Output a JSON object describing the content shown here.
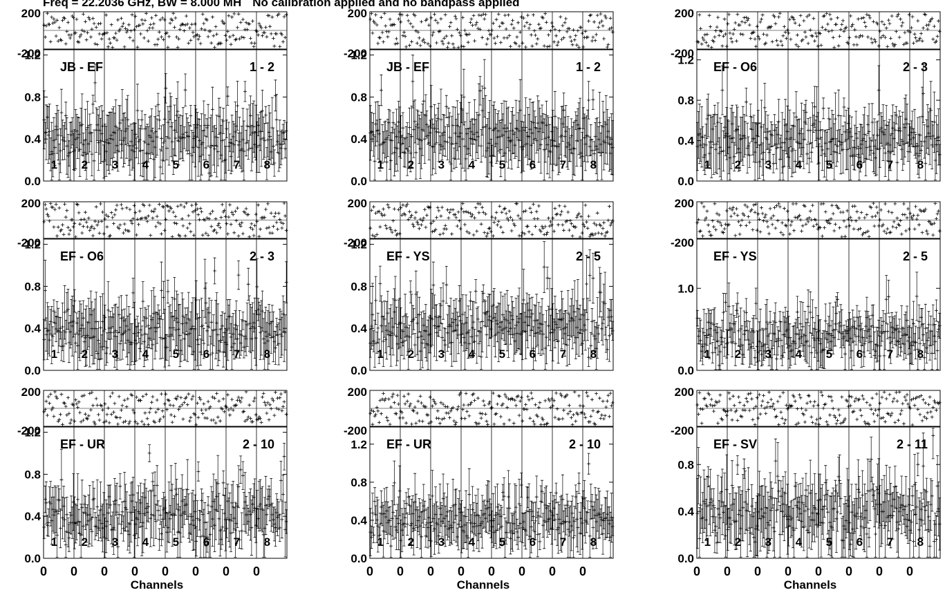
{
  "header": {
    "freq_text": "Freq = 22.2036 GHz, BW = 8.000 MH",
    "cal_text": "No calibration applied and no bandpass applied"
  },
  "x_axis": {
    "label": "Channels",
    "tick_labels": [
      "0",
      "0",
      "0",
      "0",
      "0",
      "0",
      "0",
      "0"
    ]
  },
  "subband_labels": [
    "1",
    "2",
    "3",
    "4",
    "5",
    "6",
    "7",
    "8"
  ],
  "chart_data": [
    {
      "type": "scatter",
      "row": 0,
      "col": 0,
      "baseline": "JB - EF",
      "antennas": "1 - 2",
      "phase": {
        "ylim": [
          -200,
          200
        ],
        "tick_labels": [
          "200",
          "-200"
        ]
      },
      "amp": {
        "ylim": [
          0,
          1.25
        ],
        "ticks": [
          0.0,
          0.4,
          0.8,
          1.2
        ],
        "tick_labels": [
          "0.0",
          "0.4",
          "0.8",
          "1.2"
        ],
        "mean": 0.4,
        "spread": 0.2
      }
    },
    {
      "type": "scatter",
      "row": 0,
      "col": 1,
      "baseline": "JB - EF",
      "antennas": "1 - 2",
      "phase": {
        "ylim": [
          -200,
          200
        ],
        "tick_labels": [
          "200",
          "-200"
        ]
      },
      "amp": {
        "ylim": [
          0,
          1.25
        ],
        "ticks": [
          0.0,
          0.4,
          0.8,
          1.2
        ],
        "tick_labels": [
          "0.0",
          "0.4",
          "0.8",
          "1.2"
        ],
        "mean": 0.4,
        "spread": 0.2
      }
    },
    {
      "type": "scatter",
      "row": 0,
      "col": 2,
      "baseline": "EF - O6",
      "antennas": "2 - 3",
      "phase": {
        "ylim": [
          -200,
          200
        ],
        "tick_labels": [
          "200",
          "-200"
        ]
      },
      "amp": {
        "ylim": [
          0,
          1.3
        ],
        "ticks": [
          0.0,
          0.4,
          0.8,
          1.2
        ],
        "tick_labels": [
          "0.0",
          "0.4",
          "0.8",
          "1.2"
        ],
        "mean": 0.4,
        "spread": 0.2
      }
    },
    {
      "type": "scatter",
      "row": 1,
      "col": 0,
      "baseline": "EF - O6",
      "antennas": "2 - 3",
      "phase": {
        "ylim": [
          -200,
          200
        ],
        "tick_labels": [
          "200",
          "-200"
        ]
      },
      "amp": {
        "ylim": [
          0,
          1.25
        ],
        "ticks": [
          0.0,
          0.4,
          0.8,
          1.2
        ],
        "tick_labels": [
          "0.0",
          "0.4",
          "0.8",
          "1.2"
        ],
        "mean": 0.38,
        "spread": 0.2
      }
    },
    {
      "type": "scatter",
      "row": 1,
      "col": 1,
      "baseline": "EF - YS",
      "antennas": "2 - 5",
      "phase": {
        "ylim": [
          -200,
          200
        ],
        "tick_labels": [
          "200",
          "-200"
        ]
      },
      "amp": {
        "ylim": [
          0,
          1.25
        ],
        "ticks": [
          0.0,
          0.4,
          0.8,
          1.2
        ],
        "tick_labels": [
          "0.0",
          "0.4",
          "0.8",
          "1.2"
        ],
        "mean": 0.4,
        "spread": 0.2
      }
    },
    {
      "type": "scatter",
      "row": 1,
      "col": 2,
      "baseline": "EF - YS",
      "antennas": "2 - 5",
      "phase": {
        "ylim": [
          -200,
          200
        ],
        "tick_labels": [
          "200",
          "-200"
        ]
      },
      "amp": {
        "ylim": [
          0,
          1.6
        ],
        "ticks": [
          0.0,
          1.0
        ],
        "tick_labels": [
          "0.0",
          "1.0"
        ],
        "mean": 0.4,
        "spread": 0.22
      }
    },
    {
      "type": "scatter",
      "row": 2,
      "col": 0,
      "baseline": "EF - UR",
      "antennas": "2 - 10",
      "phase": {
        "ylim": [
          -200,
          200
        ],
        "tick_labels": [
          "200",
          "-200"
        ]
      },
      "amp": {
        "ylim": [
          0,
          1.25
        ],
        "ticks": [
          0.0,
          0.4,
          0.8,
          1.2
        ],
        "tick_labels": [
          "0.0",
          "0.4",
          "0.8",
          "1.2"
        ],
        "mean": 0.4,
        "spread": 0.22
      }
    },
    {
      "type": "scatter",
      "row": 2,
      "col": 1,
      "baseline": "EF - UR",
      "antennas": "2 - 10",
      "phase": {
        "ylim": [
          -200,
          200
        ],
        "tick_labels": [
          "200",
          "-200"
        ]
      },
      "amp": {
        "ylim": [
          0,
          1.38
        ],
        "ticks": [
          0.0,
          0.4,
          0.8,
          1.2
        ],
        "tick_labels": [
          "0.0",
          "0.4",
          "0.8",
          "1.2"
        ],
        "mean": 0.4,
        "spread": 0.2
      }
    },
    {
      "type": "scatter",
      "row": 2,
      "col": 2,
      "baseline": "EF - SV",
      "antennas": "2 - 11",
      "phase": {
        "ylim": [
          -200,
          200
        ],
        "tick_labels": [
          "200",
          "-200"
        ]
      },
      "amp": {
        "ylim": [
          0,
          1.12
        ],
        "ticks": [
          0.0,
          0.4,
          0.8
        ],
        "tick_labels": [
          "0.0",
          "0.4",
          "0.8"
        ],
        "mean": 0.38,
        "spread": 0.2
      }
    }
  ]
}
